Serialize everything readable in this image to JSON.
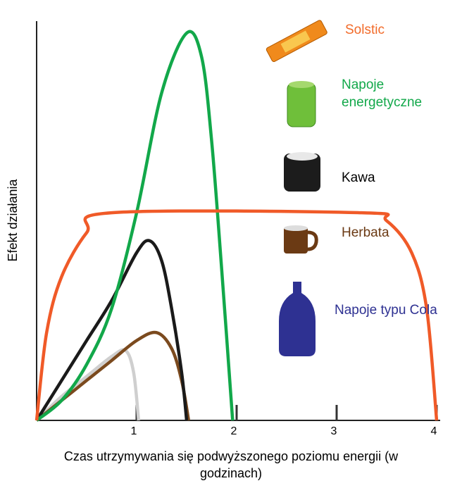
{
  "chart_data": {
    "type": "line",
    "x_label": "Czas utrzymywania się podwyższonego poziomu energii (w godzinach)",
    "y_label": "Efekt działania",
    "xlim": [
      0,
      4
    ],
    "xticks": [
      1,
      2,
      3,
      4
    ],
    "ylim": [
      0,
      100
    ],
    "series": [
      {
        "name": "Solstic",
        "color": "#f05a28",
        "text_color": "#f26b2a",
        "x": [
          0,
          0.1,
          0.25,
          0.5,
          0.75,
          3.25,
          3.5,
          3.75,
          3.9,
          4.0
        ],
        "values": [
          0,
          22,
          36,
          47,
          52,
          52,
          50,
          42,
          28,
          0
        ]
      },
      {
        "name": "Napoje energetyczne",
        "color": "#12a84a",
        "text_color": "#12a84a",
        "x": [
          0,
          0.25,
          0.5,
          0.75,
          1.0,
          1.25,
          1.5,
          1.65,
          1.75,
          1.85,
          1.96
        ],
        "values": [
          0,
          5,
          14,
          28,
          52,
          82,
          97,
          91,
          70,
          38,
          0
        ]
      },
      {
        "name": "Kawa",
        "color": "#1a1a1a",
        "text_color": "#000000",
        "x": [
          0,
          0.25,
          0.5,
          0.75,
          1.0,
          1.13,
          1.25,
          1.35,
          1.45,
          1.5
        ],
        "values": [
          0,
          10,
          20,
          30,
          42,
          45,
          40,
          28,
          12,
          0
        ]
      },
      {
        "name": "Herbata",
        "color": "#7b4a1e",
        "text_color": "#6b3a14",
        "x": [
          0,
          0.25,
          0.5,
          0.75,
          1.0,
          1.2,
          1.35,
          1.45,
          1.52
        ],
        "values": [
          0,
          5,
          10,
          15,
          20,
          22,
          18,
          10,
          0
        ]
      },
      {
        "name": "Napoje typu Cola",
        "color": "#cfcfcf",
        "text_color": "#2e3192",
        "x": [
          0,
          0.25,
          0.5,
          0.75,
          0.89,
          0.97,
          1.02
        ],
        "values": [
          0,
          6,
          11,
          16,
          17.5,
          12,
          0
        ]
      }
    ]
  }
}
